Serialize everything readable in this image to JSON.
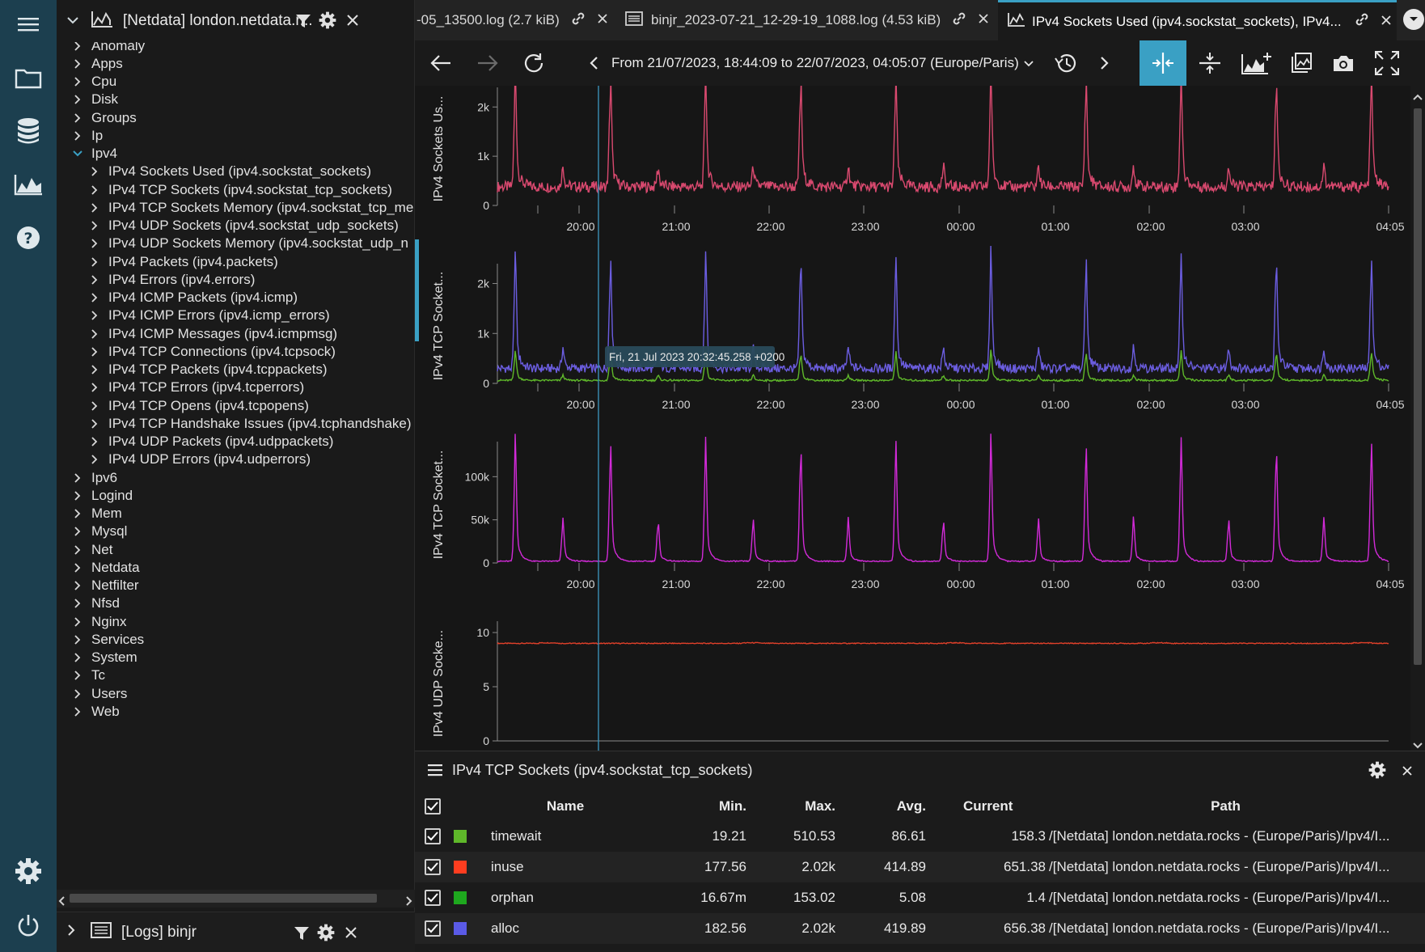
{
  "activity": {
    "icons": [
      "menu-icon",
      "folder-icon",
      "database-icon",
      "chart-icon",
      "help-icon",
      "settings-icon",
      "power-icon"
    ]
  },
  "sidebar": {
    "title": "[Netdata] london.netdata.r...",
    "tree": [
      {
        "label": "Anomaly",
        "level": 0,
        "expanded": false
      },
      {
        "label": "Apps",
        "level": 0,
        "expanded": false
      },
      {
        "label": "Cpu",
        "level": 0,
        "expanded": false
      },
      {
        "label": "Disk",
        "level": 0,
        "expanded": false
      },
      {
        "label": "Groups",
        "level": 0,
        "expanded": false
      },
      {
        "label": "Ip",
        "level": 0,
        "expanded": false
      },
      {
        "label": "Ipv4",
        "level": 0,
        "expanded": true
      },
      {
        "label": "IPv4 Sockets Used (ipv4.sockstat_sockets)",
        "level": 1,
        "expanded": false
      },
      {
        "label": "IPv4 TCP Sockets (ipv4.sockstat_tcp_sockets)",
        "level": 1,
        "expanded": false
      },
      {
        "label": "IPv4 TCP Sockets Memory (ipv4.sockstat_tcp_me",
        "level": 1,
        "expanded": false
      },
      {
        "label": "IPv4 UDP Sockets (ipv4.sockstat_udp_sockets)",
        "level": 1,
        "expanded": false
      },
      {
        "label": "IPv4 UDP Sockets Memory (ipv4.sockstat_udp_n",
        "level": 1,
        "expanded": false
      },
      {
        "label": "IPv4 Packets (ipv4.packets)",
        "level": 1,
        "expanded": false
      },
      {
        "label": "IPv4 Errors (ipv4.errors)",
        "level": 1,
        "expanded": false
      },
      {
        "label": "IPv4 ICMP Packets (ipv4.icmp)",
        "level": 1,
        "expanded": false
      },
      {
        "label": "IPv4 ICMP Errors (ipv4.icmp_errors)",
        "level": 1,
        "expanded": false
      },
      {
        "label": "IPv4 ICMP Messages (ipv4.icmpmsg)",
        "level": 1,
        "expanded": false
      },
      {
        "label": "IPv4 TCP Connections (ipv4.tcpsock)",
        "level": 1,
        "expanded": false
      },
      {
        "label": "IPv4 TCP Packets (ipv4.tcppackets)",
        "level": 1,
        "expanded": false
      },
      {
        "label": "IPv4 TCP Errors (ipv4.tcperrors)",
        "level": 1,
        "expanded": false
      },
      {
        "label": "IPv4 TCP Opens (ipv4.tcpopens)",
        "level": 1,
        "expanded": false
      },
      {
        "label": "IPv4 TCP Handshake Issues (ipv4.tcphandshake)",
        "level": 1,
        "expanded": false
      },
      {
        "label": "IPv4 UDP Packets (ipv4.udppackets)",
        "level": 1,
        "expanded": false
      },
      {
        "label": "IPv4 UDP Errors (ipv4.udperrors)",
        "level": 1,
        "expanded": false
      },
      {
        "label": "Ipv6",
        "level": 0,
        "expanded": false
      },
      {
        "label": "Logind",
        "level": 0,
        "expanded": false
      },
      {
        "label": "Mem",
        "level": 0,
        "expanded": false
      },
      {
        "label": "Mysql",
        "level": 0,
        "expanded": false
      },
      {
        "label": "Net",
        "level": 0,
        "expanded": false
      },
      {
        "label": "Netdata",
        "level": 0,
        "expanded": false
      },
      {
        "label": "Netfilter",
        "level": 0,
        "expanded": false
      },
      {
        "label": "Nfsd",
        "level": 0,
        "expanded": false
      },
      {
        "label": "Nginx",
        "level": 0,
        "expanded": false
      },
      {
        "label": "Services",
        "level": 0,
        "expanded": false
      },
      {
        "label": "System",
        "level": 0,
        "expanded": false
      },
      {
        "label": "Tc",
        "level": 0,
        "expanded": false
      },
      {
        "label": "Users",
        "level": 0,
        "expanded": false
      },
      {
        "label": "Web",
        "level": 0,
        "expanded": false
      }
    ],
    "footer_title": "[Logs] binjr"
  },
  "tabs": [
    {
      "label": "-05_13500.log (2.7 kiB)",
      "icon": "log-icon",
      "active": false
    },
    {
      "label": "binjr_2023-07-21_12-29-19_1088.log (4.53 kiB)",
      "icon": "log-icon",
      "active": false
    },
    {
      "label": "IPv4 Sockets Used (ipv4.sockstat_sockets), IPv4...",
      "icon": "chart-icon",
      "active": true
    }
  ],
  "toolbar": {
    "range": "From 21/07/2023, 18:44:09 to 22/07/2023, 04:05:07 (Europe/Paris)"
  },
  "crosshair_label": "Fri, 21 Jul 2023 20:32:45.258 +0200",
  "time_ticks": [
    "20:00",
    "21:00",
    "22:00",
    "23:00",
    "00:00",
    "01:00",
    "02:00",
    "03:00",
    "04:05"
  ],
  "chart_data": [
    {
      "type": "line",
      "ylabel": "IPv4 Sockets Us...",
      "yticks": [
        "2k",
        "1k",
        "0"
      ],
      "ylim": [
        0,
        2300
      ],
      "series": [
        {
          "color": "#d9496f",
          "baseline": 380,
          "spike": 1800
        }
      ]
    },
    {
      "type": "line",
      "ylabel": "IPv4 TCP Socket...",
      "yticks": [
        "2k",
        "1k",
        "0"
      ],
      "ylim": [
        0,
        2300
      ],
      "series": [
        {
          "name": "alloc",
          "color": "#6b5de0",
          "baseline": 300,
          "spike": 1800
        },
        {
          "name": "timewait",
          "color": "#5fb82a",
          "baseline": 60,
          "spike": 450
        }
      ]
    },
    {
      "type": "line",
      "ylabel": "IPv4 TCP Socket...",
      "yticks": [
        "100k",
        "50k",
        "0"
      ],
      "ylim": [
        0,
        135000
      ],
      "series": [
        {
          "color": "#d22ad8",
          "baseline": 2000,
          "spike": 110000
        }
      ]
    },
    {
      "type": "line",
      "ylabel": "IPv4 UDP Socke...",
      "yticks": [
        "10",
        "5",
        "0"
      ],
      "ylim": [
        0,
        10.6
      ],
      "series": [
        {
          "color": "#e0402a",
          "baseline": 9.0,
          "spike": 9.1
        }
      ]
    }
  ],
  "panel": {
    "title": "IPv4 TCP Sockets (ipv4.sockstat_tcp_sockets)",
    "headers": {
      "name": "Name",
      "min": "Min.",
      "max": "Max.",
      "avg": "Avg.",
      "current": "Current",
      "path": "Path"
    },
    "rows": [
      {
        "color": "#5fb82a",
        "name": "timewait",
        "min": "19.21",
        "max": "510.53",
        "avg": "86.61",
        "current": "158.3",
        "path": "/[Netdata] london.netdata.rocks -  (Europe/Paris)/Ipv4/I..."
      },
      {
        "color": "#ff3d1f",
        "name": "inuse",
        "min": "177.56",
        "max": "2.02k",
        "avg": "414.89",
        "current": "651.38",
        "path": "/[Netdata] london.netdata.rocks -  (Europe/Paris)/Ipv4/I..."
      },
      {
        "color": "#1ea81e",
        "name": "orphan",
        "min": "16.67m",
        "max": "153.02",
        "avg": "5.08",
        "current": "1.4",
        "path": "/[Netdata] london.netdata.rocks -  (Europe/Paris)/Ipv4/I..."
      },
      {
        "color": "#5a5ae6",
        "name": "alloc",
        "min": "182.56",
        "max": "2.02k",
        "avg": "419.89",
        "current": "656.38",
        "path": "/[Netdata] london.netdata.rocks -  (Europe/Paris)/Ipv4/I..."
      }
    ]
  }
}
